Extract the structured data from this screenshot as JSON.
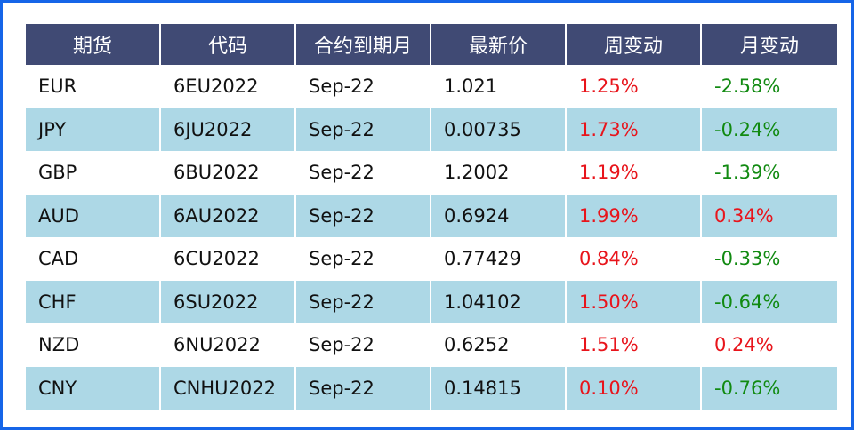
{
  "table": {
    "headers": [
      "期货",
      "代码",
      "合约到期月",
      "最新价",
      "周变动",
      "月变动"
    ],
    "rows": [
      {
        "name": "EUR",
        "code": "6EU2022",
        "expiry": "Sep-22",
        "price": "1.021",
        "week": "1.25%",
        "month": "-2.58%",
        "week_dir": "up",
        "month_dir": "down"
      },
      {
        "name": "JPY",
        "code": "6JU2022",
        "expiry": "Sep-22",
        "price": "0.00735",
        "week": "1.73%",
        "month": "-0.24%",
        "week_dir": "up",
        "month_dir": "down"
      },
      {
        "name": "GBP",
        "code": "6BU2022",
        "expiry": "Sep-22",
        "price": "1.2002",
        "week": "1.19%",
        "month": "-1.39%",
        "week_dir": "up",
        "month_dir": "down"
      },
      {
        "name": "AUD",
        "code": "6AU2022",
        "expiry": "Sep-22",
        "price": "0.6924",
        "week": "1.99%",
        "month": "0.34%",
        "week_dir": "up",
        "month_dir": "up"
      },
      {
        "name": "CAD",
        "code": "6CU2022",
        "expiry": "Sep-22",
        "price": "0.77429",
        "week": "0.84%",
        "month": "-0.33%",
        "week_dir": "up",
        "month_dir": "down"
      },
      {
        "name": "CHF",
        "code": "6SU2022",
        "expiry": "Sep-22",
        "price": "1.04102",
        "week": "1.50%",
        "month": "-0.64%",
        "week_dir": "up",
        "month_dir": "down"
      },
      {
        "name": "NZD",
        "code": "6NU2022",
        "expiry": "Sep-22",
        "price": "0.6252",
        "week": "1.51%",
        "month": "0.24%",
        "week_dir": "up",
        "month_dir": "up"
      },
      {
        "name": "CNY",
        "code": "CNHU2022",
        "expiry": "Sep-22",
        "price": "0.14815",
        "week": "0.10%",
        "month": "-0.76%",
        "week_dir": "up",
        "month_dir": "down"
      }
    ]
  },
  "colors": {
    "frame_border": "#1565e8",
    "header_bg": "#404a74",
    "header_text": "#ffffff",
    "row_alt_bg": "#add8e6",
    "positive": "#e8141b",
    "negative": "#118a11"
  }
}
